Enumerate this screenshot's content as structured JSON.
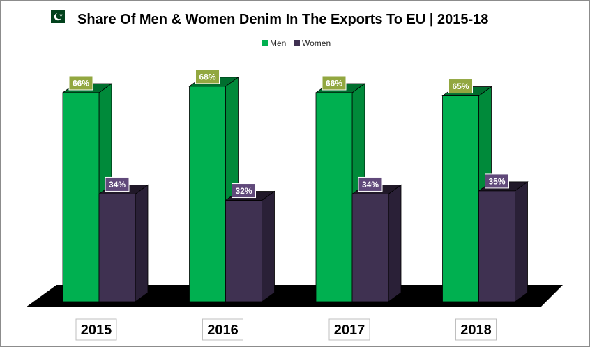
{
  "chart_data": {
    "type": "bar",
    "title": "Share Of Men & Women Denim In The Exports To EU | 2015-18",
    "flag": "pakistan-flag-icon",
    "categories": [
      "2015",
      "2016",
      "2017",
      "2018"
    ],
    "series": [
      {
        "name": "Men",
        "values": [
          66,
          68,
          66,
          65
        ],
        "labels": [
          "66%",
          "68%",
          "66%",
          "65%"
        ],
        "color": "#00b050",
        "side_color": "#008a3a",
        "top_color": "#006e2e",
        "label_bg": "#92a740"
      },
      {
        "name": "Women",
        "values": [
          34,
          32,
          34,
          35
        ],
        "labels": [
          "34%",
          "32%",
          "34%",
          "35%"
        ],
        "color": "#3f3151",
        "side_color": "#2a2037",
        "top_color": "#201828",
        "label_bg": "#60497a"
      }
    ],
    "ylim": [
      0,
      100
    ],
    "legend_position": "top-center",
    "grid": false,
    "xlabel": "",
    "ylabel": ""
  }
}
